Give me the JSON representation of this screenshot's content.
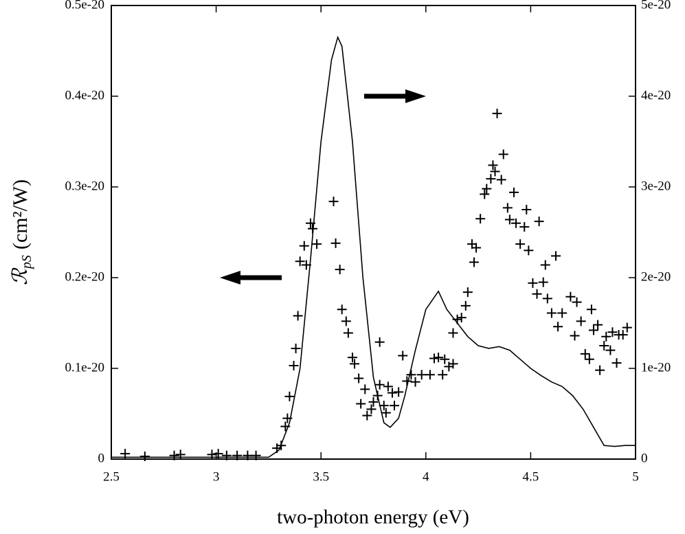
{
  "chart_data": {
    "type": "line",
    "xlabel": "two-photon energy (eV)",
    "ylabel": {
      "symbol": "ℛ",
      "subscript": "pS",
      "unit": "(cm²/W)"
    },
    "xlim": [
      2.5,
      5
    ],
    "xticks": [
      2.5,
      3,
      3.5,
      4,
      4.5,
      5
    ],
    "ylim": [
      0,
      5e-21
    ],
    "yticks": [
      0,
      {
        "value": 1e-21,
        "label": "0.1e-20"
      },
      {
        "value": 2e-21,
        "label": "0.2e-20"
      },
      {
        "value": 3e-21,
        "label": "0.3e-20"
      },
      {
        "value": 4e-21,
        "label": "0.4e-20"
      },
      {
        "value": 5e-21,
        "label": "0.5e-20"
      }
    ],
    "y2lim": [
      0,
      5e-20
    ],
    "y2ticks": [
      0,
      1e-20,
      2e-20,
      3e-20,
      4e-20,
      5e-20
    ],
    "series": [
      {
        "color": "#000000",
        "marker": "plus",
        "axis": "y",
        "x": [
          2.566,
          2.66,
          2.8,
          2.83,
          2.98,
          3.01,
          3.05,
          3.1,
          3.15,
          3.19,
          3.29,
          3.31,
          3.33,
          3.34,
          3.35,
          3.37,
          3.38,
          3.39,
          3.4,
          3.42,
          3.43,
          3.45,
          3.46,
          3.48,
          3.56,
          3.57,
          3.59,
          3.6,
          3.62,
          3.63,
          3.65,
          3.66,
          3.68,
          3.69,
          3.71,
          3.72,
          3.74,
          3.75,
          3.77,
          3.78,
          3.78,
          3.8,
          3.81,
          3.82,
          3.84,
          3.85,
          3.87,
          3.89,
          3.91,
          3.93,
          3.95,
          3.98,
          4.02,
          4.04,
          4.06,
          4.08,
          4.09,
          4.11,
          4.13,
          4.13,
          4.15,
          4.17,
          4.19,
          4.2,
          4.22,
          4.23,
          4.24,
          4.26,
          4.28,
          4.29,
          4.31,
          4.32,
          4.33,
          4.34,
          4.36,
          4.37,
          4.39,
          4.4,
          4.42,
          4.43,
          4.45,
          4.47,
          4.48,
          4.49,
          4.51,
          4.53,
          4.54,
          4.56,
          4.57,
          4.58,
          4.6,
          4.62,
          4.63,
          4.65,
          4.69,
          4.71,
          4.72,
          4.74,
          4.76,
          4.78,
          4.79,
          4.8,
          4.82,
          4.83,
          4.85,
          4.86,
          4.88,
          4.89,
          4.91,
          4.92,
          4.94,
          4.96
        ],
        "values": [
          6e-23,
          3e-23,
          4e-23,
          5e-23,
          5e-23,
          6e-23,
          4e-23,
          4e-23,
          4e-23,
          4e-23,
          1.2e-22,
          1.5e-22,
          3.6e-22,
          4.5e-22,
          6.9e-22,
          1.03e-21,
          1.22e-21,
          1.58e-21,
          2.18e-21,
          2.35e-21,
          2.14e-21,
          2.6e-21,
          2.54e-21,
          2.37e-21,
          2.84e-21,
          2.38e-21,
          2.09e-21,
          1.65e-21,
          1.52e-21,
          1.39e-21,
          1.12e-21,
          1.05e-21,
          8.9e-22,
          6.1e-22,
          7.7e-22,
          4.8e-22,
          5.5e-22,
          6.3e-22,
          7e-22,
          8.2e-22,
          1.29e-21,
          5.9e-22,
          5.1e-22,
          8e-22,
          7.3e-22,
          5.9e-22,
          7.4e-22,
          1.14e-21,
          8.6e-22,
          9.3e-22,
          8.5e-22,
          9.3e-22,
          9.3e-22,
          1.11e-21,
          1.12e-21,
          9.3e-22,
          1.1e-21,
          1.02e-21,
          1.05e-21,
          1.39e-21,
          1.54e-21,
          1.56e-21,
          1.69e-21,
          1.84e-21,
          2.37e-21,
          2.17e-21,
          2.33e-21,
          2.65e-21,
          2.92e-21,
          2.98e-21,
          3.09e-21,
          3.24e-21,
          3.17e-21,
          3.81e-21,
          3.08e-21,
          3.36e-21,
          2.77e-21,
          2.64e-21,
          2.94e-21,
          2.6e-21,
          2.37e-21,
          2.56e-21,
          2.75e-21,
          2.3e-21,
          1.94e-21,
          1.82e-21,
          2.62e-21,
          1.95e-21,
          2.14e-21,
          1.77e-21,
          1.61e-21,
          2.24e-21,
          1.46e-21,
          1.61e-21,
          1.79e-21,
          1.36e-21,
          1.73e-21,
          1.52e-21,
          1.16e-21,
          1.1e-21,
          1.65e-21,
          1.42e-21,
          1.48e-21,
          9.8e-22,
          1.25e-21,
          1.35e-21,
          1.2e-21,
          1.4e-21,
          1.06e-21,
          1.37e-21,
          1.37e-21,
          1.45e-21
        ]
      },
      {
        "color": "#000000",
        "marker": "none",
        "axis": "y2",
        "x": [
          2.5,
          3.25,
          3.3,
          3.35,
          3.4,
          3.45,
          3.5,
          3.55,
          3.58,
          3.6,
          3.65,
          3.7,
          3.75,
          3.8,
          3.83,
          3.87,
          3.9,
          3.95,
          4.0,
          4.06,
          4.1,
          4.15,
          4.2,
          4.25,
          4.3,
          4.35,
          4.4,
          4.45,
          4.5,
          4.55,
          4.6,
          4.65,
          4.7,
          4.75,
          4.8,
          4.85,
          4.9,
          4.95,
          5.0
        ],
        "values": [
          2e-22,
          2e-22,
          1e-21,
          4e-21,
          1e-20,
          2.2e-20,
          3.5e-20,
          4.4e-20,
          4.65e-20,
          4.55e-20,
          3.5e-20,
          2e-20,
          9e-21,
          4e-21,
          3.5e-21,
          4.5e-21,
          7e-21,
          1.2e-20,
          1.65e-20,
          1.85e-20,
          1.65e-20,
          1.5e-20,
          1.35e-20,
          1.25e-20,
          1.22e-20,
          1.24e-20,
          1.2e-20,
          1.1e-20,
          1e-20,
          9.2e-21,
          8.5e-21,
          8e-21,
          7e-21,
          5.5e-21,
          3.5e-21,
          1.5e-21,
          1.4e-21,
          1.5e-21,
          1.5e-21
        ]
      }
    ]
  }
}
